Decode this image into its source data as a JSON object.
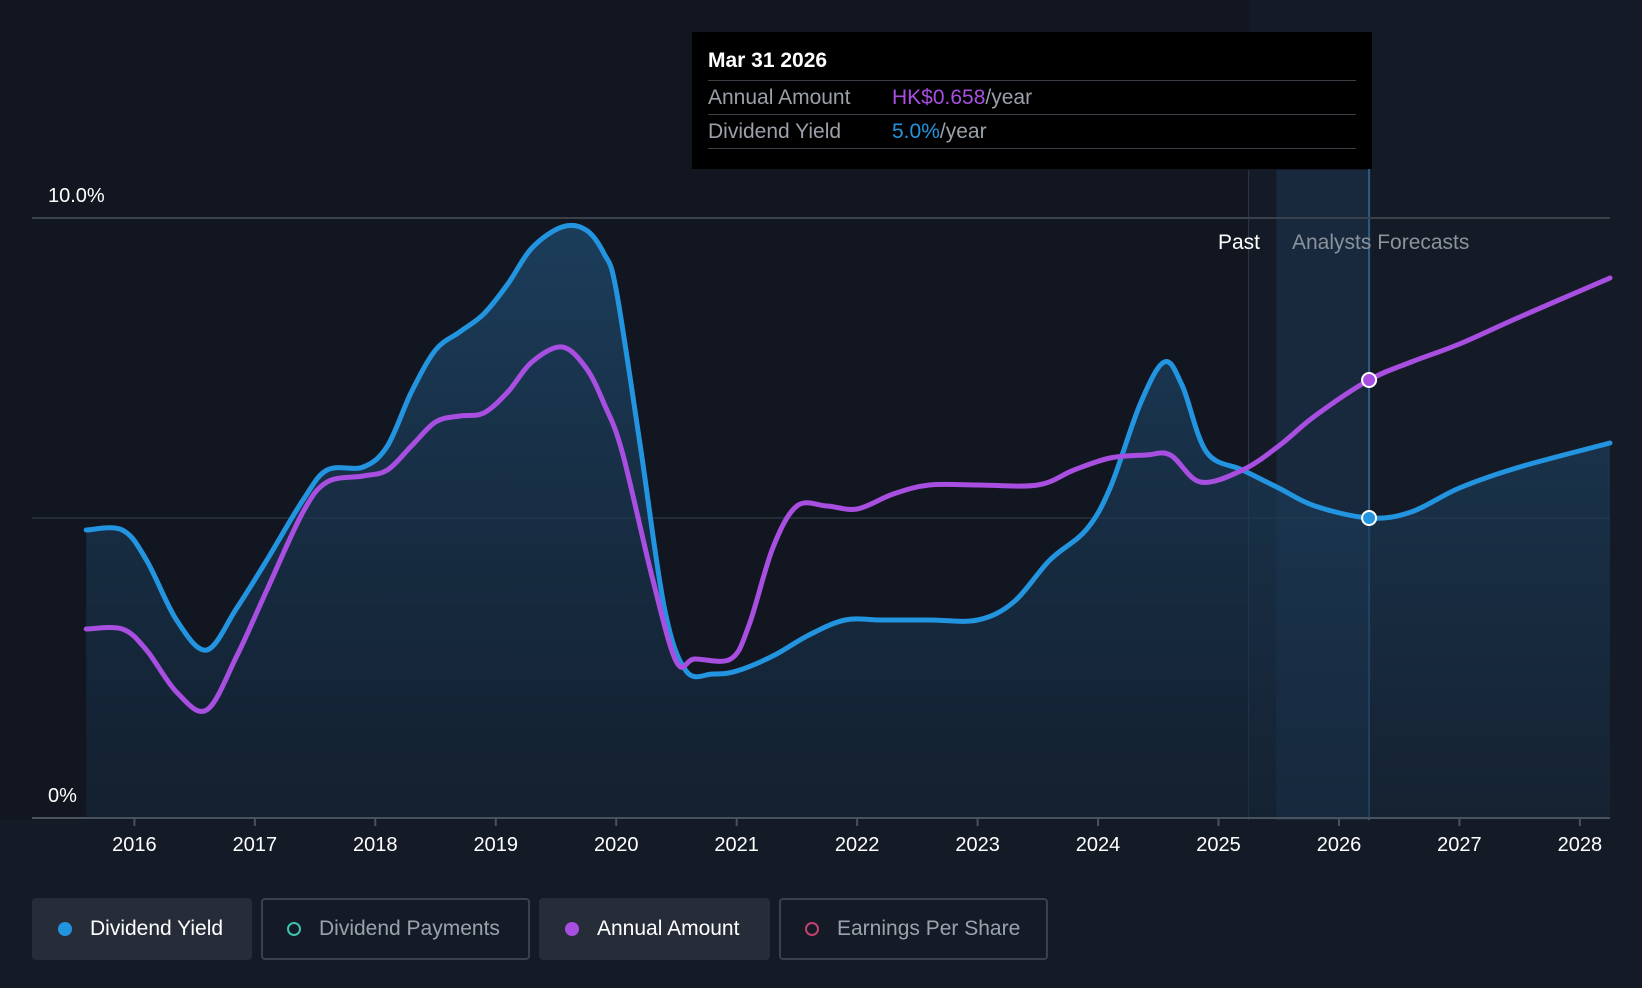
{
  "chart_data": {
    "type": "line",
    "y_ticks": [
      "10.0%",
      "0%"
    ],
    "ylim": [
      0,
      10
    ],
    "xlim": [
      2015.15,
      2028.25
    ],
    "x_ticks": [
      "2016",
      "2017",
      "2018",
      "2019",
      "2020",
      "2021",
      "2022",
      "2023",
      "2024",
      "2025",
      "2026",
      "2027",
      "2028"
    ],
    "past_label": "Past",
    "forecast_label": "Analysts Forecasts",
    "past_end_x": 2025.25,
    "forecast_start_x": 2025.48,
    "cursor_x": 2026.25,
    "grid_y": [
      10,
      5
    ],
    "series": [
      {
        "name": "Dividend Yield",
        "color": "#2394df",
        "filled": true,
        "points": [
          [
            2015.6,
            4.8
          ],
          [
            2015.9,
            4.8
          ],
          [
            2016.1,
            4.3
          ],
          [
            2016.35,
            3.3
          ],
          [
            2016.6,
            2.8
          ],
          [
            2016.85,
            3.5
          ],
          [
            2017.1,
            4.3
          ],
          [
            2017.4,
            5.3
          ],
          [
            2017.6,
            5.8
          ],
          [
            2017.9,
            5.85
          ],
          [
            2018.1,
            6.2
          ],
          [
            2018.3,
            7.1
          ],
          [
            2018.5,
            7.8
          ],
          [
            2018.7,
            8.1
          ],
          [
            2018.9,
            8.4
          ],
          [
            2019.1,
            8.9
          ],
          [
            2019.3,
            9.5
          ],
          [
            2019.55,
            9.85
          ],
          [
            2019.75,
            9.8
          ],
          [
            2019.9,
            9.4
          ],
          [
            2020.0,
            8.8
          ],
          [
            2020.2,
            6.2
          ],
          [
            2020.4,
            3.5
          ],
          [
            2020.58,
            2.45
          ],
          [
            2020.8,
            2.4
          ],
          [
            2021.0,
            2.45
          ],
          [
            2021.3,
            2.7
          ],
          [
            2021.6,
            3.05
          ],
          [
            2021.9,
            3.3
          ],
          [
            2022.2,
            3.3
          ],
          [
            2022.6,
            3.3
          ],
          [
            2023.0,
            3.3
          ],
          [
            2023.3,
            3.6
          ],
          [
            2023.6,
            4.3
          ],
          [
            2023.9,
            4.8
          ],
          [
            2024.1,
            5.5
          ],
          [
            2024.35,
            6.9
          ],
          [
            2024.55,
            7.6
          ],
          [
            2024.7,
            7.2
          ],
          [
            2024.9,
            6.1
          ],
          [
            2025.2,
            5.8
          ],
          [
            2025.5,
            5.5
          ],
          [
            2025.8,
            5.2
          ],
          [
            2026.25,
            5.0
          ],
          [
            2026.6,
            5.1
          ],
          [
            2027.0,
            5.5
          ],
          [
            2027.5,
            5.85
          ],
          [
            2028.25,
            6.25
          ]
        ]
      },
      {
        "name": "Annual Amount",
        "color": "#a84ee0",
        "filled": false,
        "points": [
          [
            2015.6,
            3.15
          ],
          [
            2015.9,
            3.15
          ],
          [
            2016.1,
            2.8
          ],
          [
            2016.35,
            2.1
          ],
          [
            2016.6,
            1.8
          ],
          [
            2016.85,
            2.7
          ],
          [
            2017.1,
            3.8
          ],
          [
            2017.4,
            5.1
          ],
          [
            2017.6,
            5.6
          ],
          [
            2017.9,
            5.7
          ],
          [
            2018.1,
            5.8
          ],
          [
            2018.3,
            6.2
          ],
          [
            2018.5,
            6.6
          ],
          [
            2018.7,
            6.7
          ],
          [
            2018.9,
            6.75
          ],
          [
            2019.1,
            7.1
          ],
          [
            2019.3,
            7.6
          ],
          [
            2019.55,
            7.85
          ],
          [
            2019.75,
            7.5
          ],
          [
            2019.9,
            6.9
          ],
          [
            2020.05,
            6.1
          ],
          [
            2020.3,
            4.0
          ],
          [
            2020.5,
            2.6
          ],
          [
            2020.65,
            2.65
          ],
          [
            2020.95,
            2.65
          ],
          [
            2021.1,
            3.2
          ],
          [
            2021.3,
            4.5
          ],
          [
            2021.5,
            5.2
          ],
          [
            2021.75,
            5.2
          ],
          [
            2022.0,
            5.15
          ],
          [
            2022.3,
            5.4
          ],
          [
            2022.6,
            5.55
          ],
          [
            2023.0,
            5.55
          ],
          [
            2023.5,
            5.55
          ],
          [
            2023.8,
            5.8
          ],
          [
            2024.1,
            6.0
          ],
          [
            2024.4,
            6.05
          ],
          [
            2024.6,
            6.05
          ],
          [
            2024.85,
            5.6
          ],
          [
            2025.2,
            5.8
          ],
          [
            2025.5,
            6.2
          ],
          [
            2025.8,
            6.7
          ],
          [
            2026.25,
            7.3
          ],
          [
            2026.6,
            7.6
          ],
          [
            2027.0,
            7.9
          ],
          [
            2027.5,
            8.35
          ],
          [
            2028.25,
            9.0
          ]
        ]
      }
    ],
    "tooltip": {
      "date": "Mar 31 2026",
      "annual_amount_label": "Annual Amount",
      "annual_amount_value": "HK$0.658",
      "annual_amount_suffix": "/year",
      "dividend_yield_label": "Dividend Yield",
      "dividend_yield_value": "5.0%",
      "dividend_yield_suffix": "/year"
    },
    "legend": [
      {
        "label": "Dividend Yield",
        "color": "#2394df",
        "active": true,
        "filled": true
      },
      {
        "label": "Dividend Payments",
        "color": "#3fc1b0",
        "active": false,
        "filled": false
      },
      {
        "label": "Annual Amount",
        "color": "#a84ee0",
        "active": true,
        "filled": true
      },
      {
        "label": "Earnings Per Share",
        "color": "#c2416f",
        "active": false,
        "filled": false
      }
    ]
  }
}
